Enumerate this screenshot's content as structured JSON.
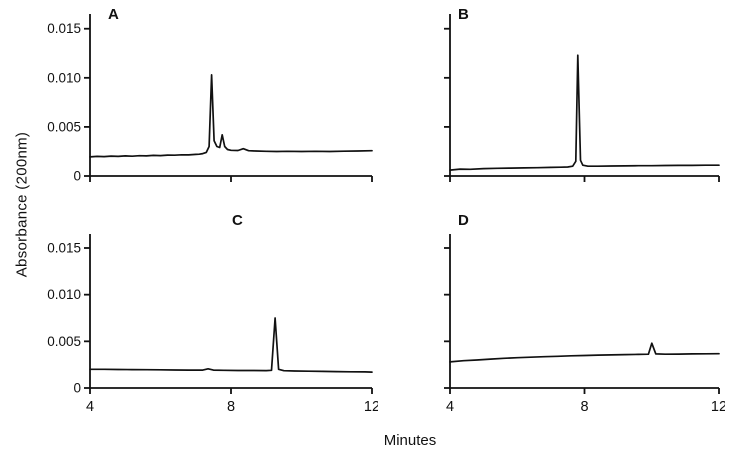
{
  "figure": {
    "panel_labels": [
      "A",
      "B",
      "C",
      "D"
    ]
  },
  "chart_data": {
    "type": "line",
    "title": "",
    "xlabel": "Minutes",
    "ylabel": "Absorbance (200nm)",
    "x_range": [
      4,
      12
    ],
    "y_range": [
      0,
      0.0165
    ],
    "grid": false,
    "legend": false,
    "x_ticks": [
      {
        "value": 4,
        "label": "4"
      },
      {
        "value": 8,
        "label": "8"
      },
      {
        "value": 12,
        "label": "12"
      }
    ],
    "y_ticks": [
      {
        "value": 0,
        "label": "0"
      },
      {
        "value": 0.005,
        "label": "0.005"
      },
      {
        "value": 0.01,
        "label": "0.010"
      },
      {
        "value": 0.015,
        "label": "0.015"
      }
    ],
    "panels": [
      {
        "id": "A",
        "label": "A",
        "show_y_labels": true,
        "show_x_labels": false,
        "peaks": [
          {
            "x": 7.45,
            "y": 0.0103
          },
          {
            "x": 7.75,
            "y": 0.0042
          },
          {
            "x": 8.35,
            "y": 0.0028
          }
        ],
        "points": [
          [
            4.0,
            0.00195
          ],
          [
            4.2,
            0.002
          ],
          [
            4.4,
            0.00198
          ],
          [
            4.6,
            0.00203
          ],
          [
            4.8,
            0.002
          ],
          [
            5.0,
            0.00205
          ],
          [
            5.2,
            0.00202
          ],
          [
            5.4,
            0.00207
          ],
          [
            5.6,
            0.00205
          ],
          [
            5.8,
            0.0021
          ],
          [
            6.0,
            0.00208
          ],
          [
            6.2,
            0.00213
          ],
          [
            6.4,
            0.00212
          ],
          [
            6.6,
            0.00216
          ],
          [
            6.8,
            0.00215
          ],
          [
            7.0,
            0.0022
          ],
          [
            7.1,
            0.00222
          ],
          [
            7.2,
            0.00228
          ],
          [
            7.3,
            0.0024
          ],
          [
            7.38,
            0.003
          ],
          [
            7.45,
            0.0103
          ],
          [
            7.52,
            0.0036
          ],
          [
            7.6,
            0.003
          ],
          [
            7.68,
            0.0029
          ],
          [
            7.75,
            0.0042
          ],
          [
            7.82,
            0.003
          ],
          [
            7.9,
            0.0027
          ],
          [
            8.0,
            0.00262
          ],
          [
            8.2,
            0.0026
          ],
          [
            8.35,
            0.00278
          ],
          [
            8.5,
            0.00258
          ],
          [
            8.7,
            0.00255
          ],
          [
            9.0,
            0.00252
          ],
          [
            9.3,
            0.0025
          ],
          [
            9.6,
            0.00252
          ],
          [
            10.0,
            0.0025
          ],
          [
            10.4,
            0.00252
          ],
          [
            10.8,
            0.0025
          ],
          [
            11.2,
            0.00253
          ],
          [
            11.6,
            0.00255
          ],
          [
            12.0,
            0.00258
          ]
        ]
      },
      {
        "id": "B",
        "label": "B",
        "show_y_labels": false,
        "show_x_labels": false,
        "peaks": [
          {
            "x": 7.8,
            "y": 0.0123
          }
        ],
        "points": [
          [
            4.0,
            0.0006
          ],
          [
            4.3,
            0.0007
          ],
          [
            4.6,
            0.00068
          ],
          [
            5.0,
            0.00075
          ],
          [
            5.4,
            0.00078
          ],
          [
            5.8,
            0.0008
          ],
          [
            6.2,
            0.00083
          ],
          [
            6.6,
            0.00085
          ],
          [
            7.0,
            0.00088
          ],
          [
            7.3,
            0.0009
          ],
          [
            7.5,
            0.00092
          ],
          [
            7.65,
            0.001
          ],
          [
            7.74,
            0.0015
          ],
          [
            7.8,
            0.0123
          ],
          [
            7.88,
            0.0016
          ],
          [
            7.95,
            0.0011
          ],
          [
            8.1,
            0.001
          ],
          [
            8.4,
            0.001
          ],
          [
            8.8,
            0.00102
          ],
          [
            9.2,
            0.00103
          ],
          [
            9.6,
            0.00105
          ],
          [
            10.0,
            0.00105
          ],
          [
            10.4,
            0.00107
          ],
          [
            10.8,
            0.00108
          ],
          [
            11.2,
            0.00108
          ],
          [
            11.6,
            0.0011
          ],
          [
            12.0,
            0.0011
          ]
        ]
      },
      {
        "id": "C",
        "label": "C",
        "show_y_labels": true,
        "show_x_labels": true,
        "peaks": [
          {
            "x": 7.35,
            "y": 0.00205
          },
          {
            "x": 9.25,
            "y": 0.0075
          }
        ],
        "points": [
          [
            4.0,
            0.002
          ],
          [
            4.4,
            0.002
          ],
          [
            4.8,
            0.00198
          ],
          [
            5.2,
            0.00197
          ],
          [
            5.6,
            0.00196
          ],
          [
            6.0,
            0.00195
          ],
          [
            6.4,
            0.00193
          ],
          [
            6.8,
            0.00192
          ],
          [
            7.2,
            0.00192
          ],
          [
            7.35,
            0.00206
          ],
          [
            7.5,
            0.00192
          ],
          [
            7.8,
            0.0019
          ],
          [
            8.2,
            0.00188
          ],
          [
            8.6,
            0.00187
          ],
          [
            9.0,
            0.00186
          ],
          [
            9.15,
            0.0019
          ],
          [
            9.25,
            0.0075
          ],
          [
            9.35,
            0.002
          ],
          [
            9.5,
            0.00185
          ],
          [
            9.8,
            0.00182
          ],
          [
            10.2,
            0.0018
          ],
          [
            10.6,
            0.00178
          ],
          [
            11.0,
            0.00176
          ],
          [
            11.4,
            0.00174
          ],
          [
            11.8,
            0.00172
          ],
          [
            12.0,
            0.0017
          ]
        ]
      },
      {
        "id": "D",
        "label": "D",
        "show_y_labels": false,
        "show_x_labels": true,
        "peaks": [
          {
            "x": 10.0,
            "y": 0.0048
          }
        ],
        "points": [
          [
            4.0,
            0.0028
          ],
          [
            4.4,
            0.00292
          ],
          [
            4.8,
            0.003
          ],
          [
            5.2,
            0.0031
          ],
          [
            5.6,
            0.00318
          ],
          [
            6.0,
            0.00325
          ],
          [
            6.4,
            0.0033
          ],
          [
            6.8,
            0.00335
          ],
          [
            7.2,
            0.0034
          ],
          [
            7.6,
            0.00345
          ],
          [
            8.0,
            0.00348
          ],
          [
            8.4,
            0.00352
          ],
          [
            8.8,
            0.00355
          ],
          [
            9.2,
            0.00358
          ],
          [
            9.6,
            0.0036
          ],
          [
            9.9,
            0.00362
          ],
          [
            10.0,
            0.0048
          ],
          [
            10.12,
            0.00365
          ],
          [
            10.4,
            0.00362
          ],
          [
            10.8,
            0.00363
          ],
          [
            11.2,
            0.00365
          ],
          [
            11.6,
            0.00366
          ],
          [
            12.0,
            0.00368
          ]
        ]
      }
    ]
  }
}
